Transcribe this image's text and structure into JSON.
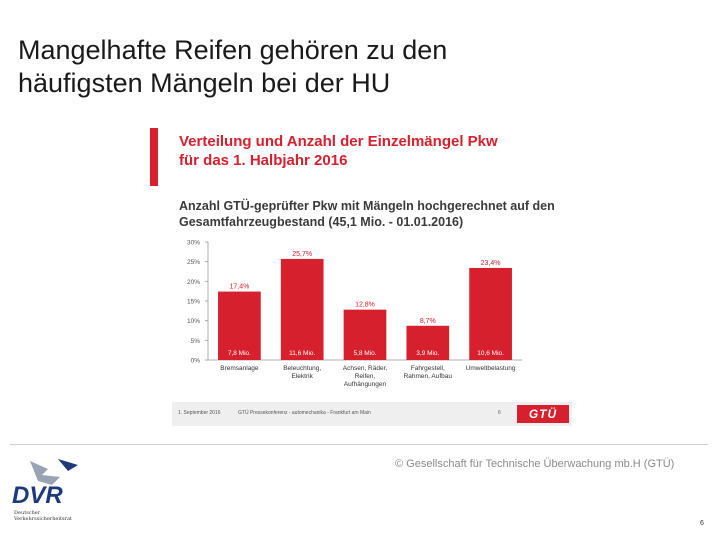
{
  "slide": {
    "title_line1": "Mangelhafte Reifen gehören zu den",
    "title_line2": "häufigsten Mängeln bei der HU",
    "copyright": "© Gesellschaft für Technische Überwachung mb.H (GTÜ)",
    "page_number": "6"
  },
  "chart_header": {
    "title_line1": "Verteilung und Anzahl der Einzelmängel Pkw",
    "title_line2": "für das 1. Halbjahr 2016",
    "subtitle_line1": "Anzahl GTÜ-geprüfter Pkw mit Mängeln hochgerechnet auf den",
    "subtitle_line2": "Gesamtfahrzeugbestand (45,1 Mio. - 01.01.2016)"
  },
  "chart_data": {
    "type": "bar",
    "categories": [
      [
        "Bremsanlage"
      ],
      [
        "Beleuchtung,",
        "Elektrik"
      ],
      [
        "Achsen, Räder,",
        "Reifen,",
        "Aufhängungen"
      ],
      [
        "Fahrgestell,",
        "Rahmen, Aufbau"
      ],
      [
        "Umweltbelastung"
      ]
    ],
    "values": [
      17.4,
      25.7,
      12.8,
      8.7,
      23.4
    ],
    "value_labels": [
      "17,4%",
      "25,7%",
      "12,8%",
      "8,7%",
      "23,4%"
    ],
    "count_labels": [
      "7,8 Mio.",
      "11,6 Mio.",
      "5,8 Mio.",
      "3,9 Mio.",
      "10,6 Mio."
    ],
    "ylim": [
      0,
      30
    ],
    "yticks": [
      0,
      5,
      10,
      15,
      20,
      25,
      30
    ],
    "ytick_labels": [
      "0%",
      "5%",
      "10%",
      "15%",
      "20%",
      "25%",
      "30%"
    ],
    "bar_color": "#d7202d",
    "label_color": "#d7202d",
    "count_label_color": "#ffffff",
    "gridlines": false
  },
  "chart_footer": {
    "date": "1. September 2016",
    "source": "GTÜ Pressekonferenz - automechanika - Frankfurt am Main",
    "page": "6",
    "logo_text": "GTÜ"
  },
  "dvr": {
    "logo_text": "DVR",
    "caption_line1": "Deutscher",
    "caption_line2": "Verkehrssicherheitsrat"
  },
  "colors": {
    "accent": "#d7202d",
    "dvr_blue": "#1f3a7a"
  }
}
